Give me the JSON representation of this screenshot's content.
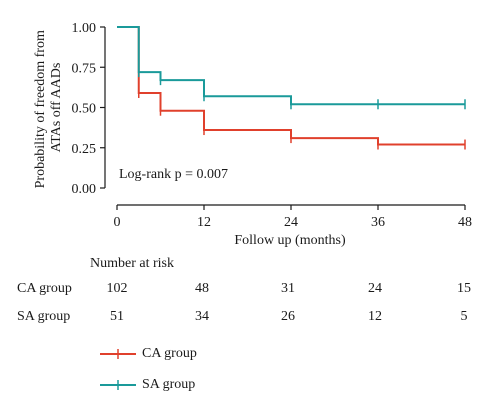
{
  "chart_data": {
    "type": "line",
    "step": true,
    "ylabel": "Probability of freedom from ATAs off AADs",
    "ylabel_lines": [
      "Probability of freedom from",
      "ATAs off AADs"
    ],
    "xlabel": "Follow up (months)",
    "xlim": [
      0,
      48
    ],
    "ylim": [
      0,
      1
    ],
    "xticks": [
      0,
      12,
      24,
      36,
      48
    ],
    "yticks": [
      "0.00",
      "0.25",
      "0.50",
      "0.75",
      "1.00"
    ],
    "annotation": "Log-rank p = 0.007",
    "series": [
      {
        "name": "CA group",
        "color": "#e0402c",
        "x": [
          0,
          3,
          6,
          12,
          24,
          36,
          48
        ],
        "y": [
          1.0,
          0.59,
          0.48,
          0.36,
          0.31,
          0.27,
          0.27
        ],
        "censored_x": [
          3,
          6,
          12,
          24,
          36,
          48
        ]
      },
      {
        "name": "SA group",
        "color": "#1a9a9a",
        "x": [
          0,
          3,
          6,
          12,
          24,
          36,
          48
        ],
        "y": [
          1.0,
          0.72,
          0.67,
          0.57,
          0.52,
          0.52,
          0.52
        ],
        "censored_x": [
          3,
          6,
          12,
          24,
          36,
          48
        ]
      }
    ]
  },
  "risk_table": {
    "title": "Number at risk",
    "rows": [
      {
        "label": "CA group",
        "values": [
          "102",
          "48",
          "31",
          "24",
          "15"
        ]
      },
      {
        "label": "SA group",
        "values": [
          "51",
          "34",
          "26",
          "12",
          "5"
        ]
      }
    ]
  },
  "legend": [
    {
      "label": "CA group",
      "color": "#e0402c"
    },
    {
      "label": "SA group",
      "color": "#1a9a9a"
    }
  ]
}
